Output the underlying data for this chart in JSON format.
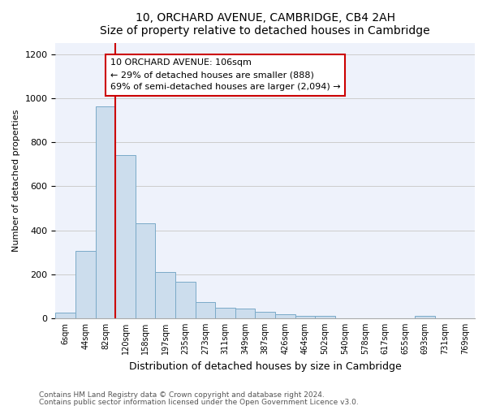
{
  "title": "10, ORCHARD AVENUE, CAMBRIDGE, CB4 2AH",
  "subtitle": "Size of property relative to detached houses in Cambridge",
  "xlabel": "Distribution of detached houses by size in Cambridge",
  "ylabel": "Number of detached properties",
  "bar_color": "#ccdded",
  "bar_edge_color": "#7aaac8",
  "grid_color": "#cccccc",
  "bg_color": "#eef2fb",
  "categories": [
    "6sqm",
    "44sqm",
    "82sqm",
    "120sqm",
    "158sqm",
    "197sqm",
    "235sqm",
    "273sqm",
    "311sqm",
    "349sqm",
    "387sqm",
    "426sqm",
    "464sqm",
    "502sqm",
    "540sqm",
    "578sqm",
    "617sqm",
    "655sqm",
    "693sqm",
    "731sqm",
    "769sqm"
  ],
  "bar_heights": [
    25,
    305,
    965,
    740,
    430,
    210,
    165,
    75,
    48,
    45,
    30,
    18,
    10,
    10,
    0,
    0,
    0,
    0,
    10,
    0,
    0
  ],
  "property_line_x": 2.5,
  "annotation_text": "10 ORCHARD AVENUE: 106sqm\n← 29% of detached houses are smaller (888)\n69% of semi-detached houses are larger (2,094) →",
  "annotation_box_color": "#cc0000",
  "vline_color": "#cc0000",
  "footnote1": "Contains HM Land Registry data © Crown copyright and database right 2024.",
  "footnote2": "Contains public sector information licensed under the Open Government Licence v3.0.",
  "ylim": [
    0,
    1250
  ],
  "yticks": [
    0,
    200,
    400,
    600,
    800,
    1000,
    1200
  ]
}
